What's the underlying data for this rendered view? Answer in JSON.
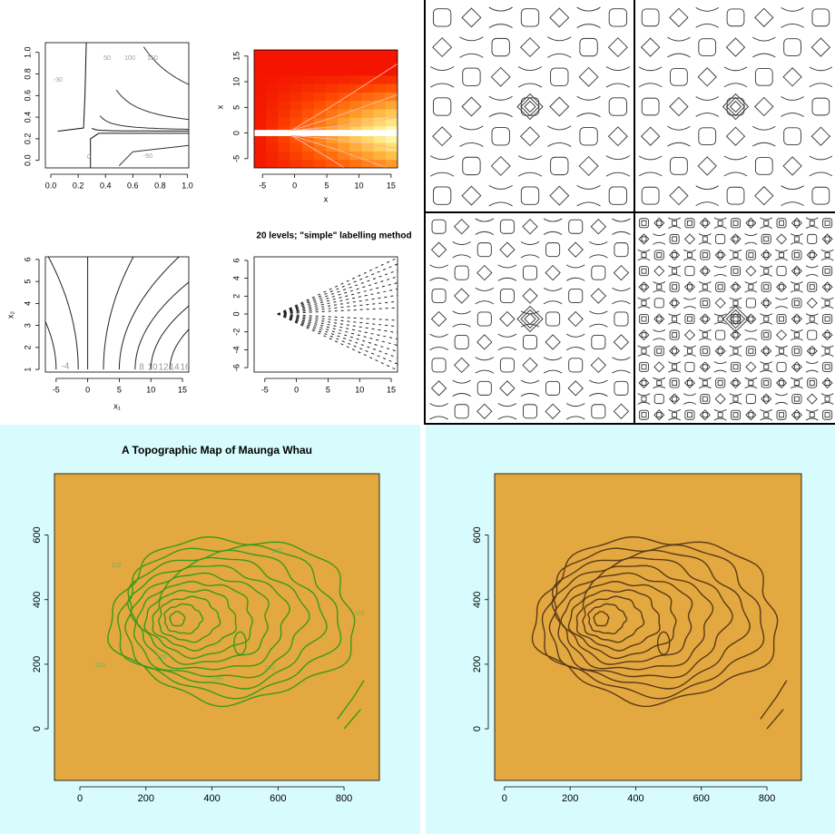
{
  "chart_data": [
    {
      "type": "contour",
      "xlim": [
        -0.04,
        1.01
      ],
      "ylim": [
        -0.07,
        1.09
      ],
      "xticks": [
        {
          "value": 0,
          "label": "0.0"
        },
        {
          "value": 0.2,
          "label": "0.2"
        },
        {
          "value": 0.4,
          "label": "0.4"
        },
        {
          "value": 0.6,
          "label": "0.6"
        },
        {
          "value": 0.8,
          "label": "0.8"
        },
        {
          "value": 1,
          "label": "1.0"
        }
      ],
      "yticks": [
        {
          "value": 0,
          "label": "0.0"
        },
        {
          "value": 0.2,
          "label": "0.2"
        },
        {
          "value": 0.4,
          "label": "0.4"
        },
        {
          "value": 0.6,
          "label": "0.6"
        },
        {
          "value": 0.8,
          "label": "0.8"
        },
        {
          "value": 1,
          "label": "1.0"
        }
      ],
      "contour_labels": [
        "-30",
        "50",
        "100",
        "150",
        "0",
        "-50"
      ]
    },
    {
      "type": "heatmap",
      "xlab": "x",
      "ylab": "x",
      "xlim": [
        -6.3,
        16
      ],
      "ylim": [
        -6.8,
        16.2
      ],
      "xticks": [
        -5,
        0,
        5,
        10,
        15
      ],
      "yticks": [
        -5,
        0,
        5,
        10,
        15
      ]
    },
    {
      "type": "fan",
      "xlab": "x₁",
      "ylab": "x₂",
      "xlim": [
        -6.7,
        16
      ],
      "ylim": [
        0.88,
        6.12
      ],
      "xticks": [
        -5,
        0,
        5,
        10,
        15
      ],
      "yticks": [
        1,
        2,
        3,
        4,
        5,
        6
      ],
      "contour_labels": [
        "-4",
        "8",
        "10",
        "12",
        "14",
        "16"
      ]
    },
    {
      "type": "dashfan",
      "title": "20 levels; \"simple\" labelling method",
      "xlim": [
        -6.7,
        16
      ],
      "ylim": [
        -6.5,
        6.4
      ],
      "xticks": [
        -5,
        0,
        5,
        10,
        15
      ],
      "yticks": [
        -6,
        -4,
        -2,
        0,
        2,
        4,
        6
      ]
    },
    {
      "type": "volcano",
      "title": "A Topographic Map of Maunga Whau",
      "color": "#3a9a1a",
      "xlim": [
        -77,
        907
      ],
      "ylim": [
        -160,
        790
      ],
      "xticks": [
        0,
        200,
        400,
        600,
        800
      ],
      "yticks": [
        0,
        200,
        400,
        600
      ],
      "contour_labels": [
        "110",
        "100",
        "120",
        "160",
        "180",
        "190",
        "110"
      ]
    },
    {
      "type": "volcano",
      "color": "#5a3a18",
      "xlim": [
        -30,
        905
      ],
      "ylim": [
        -160,
        790
      ],
      "xticks": [
        0,
        200,
        400,
        600,
        800
      ],
      "yticks": [
        0,
        200,
        400,
        600
      ]
    }
  ]
}
